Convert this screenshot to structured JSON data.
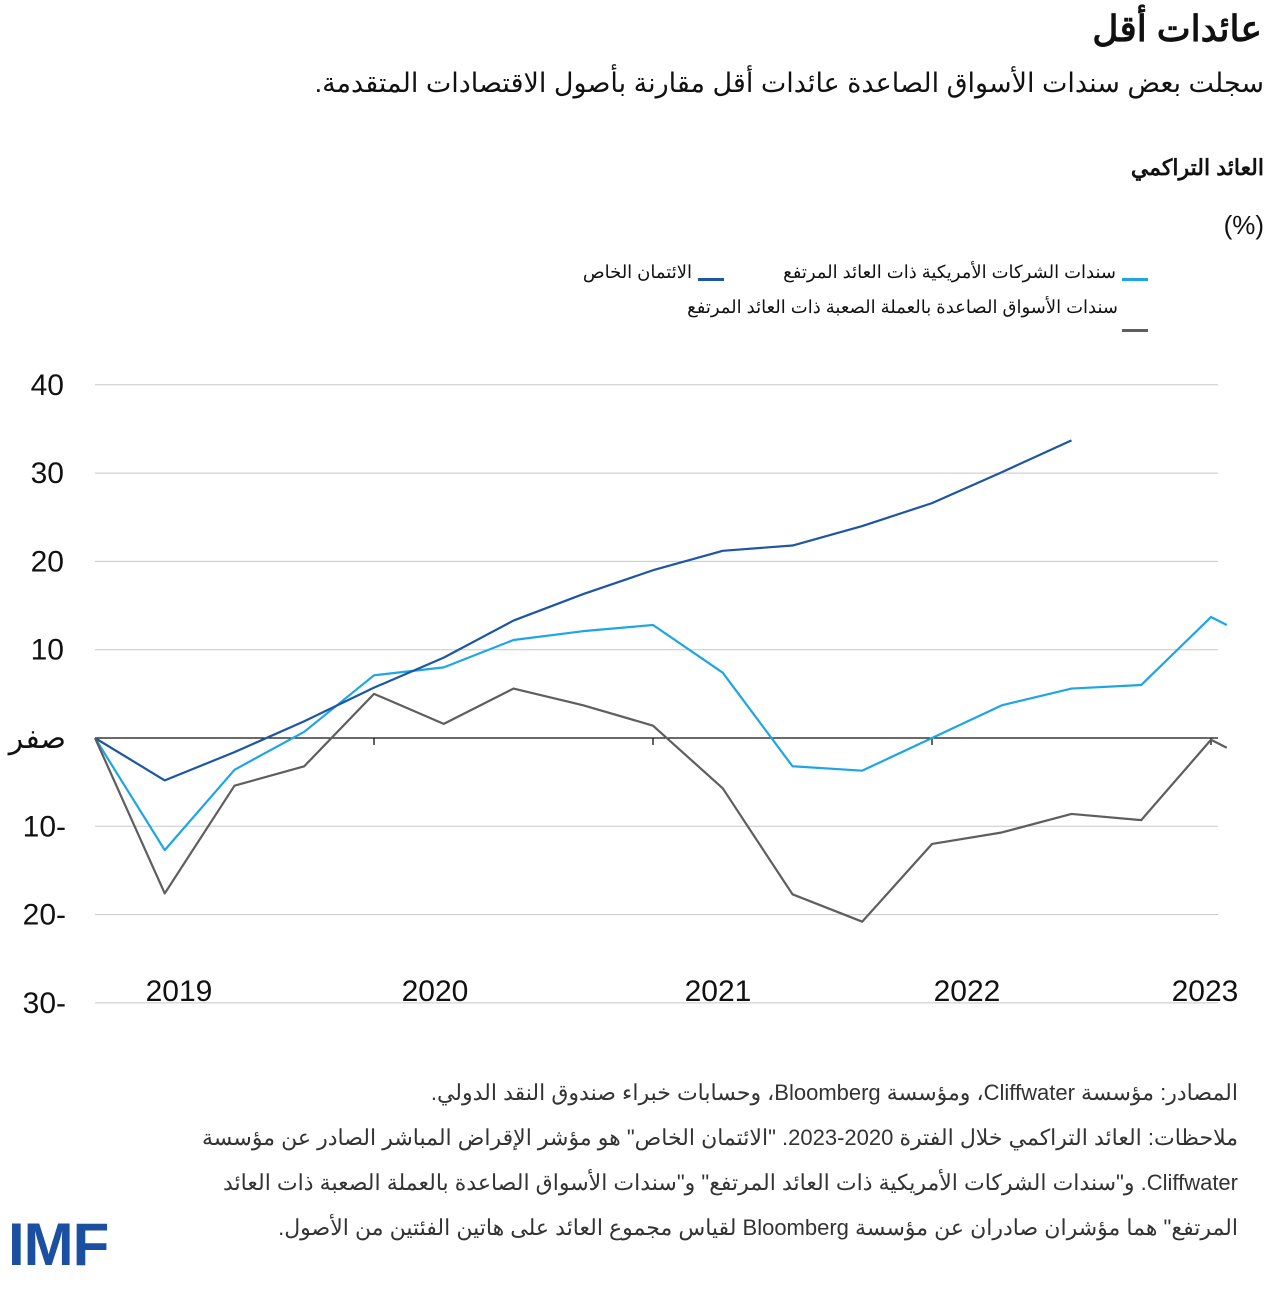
{
  "header": {
    "title": "عائدات أقل",
    "subtitle": "سجلت بعض سندات الأسواق الصاعدة عائدات أقل مقارنة بأصول الاقتصادات المتقدمة."
  },
  "chart_data": {
    "type": "line",
    "ylabel": "العائد التراكمي",
    "yunit": "(%)",
    "ylim": [
      -30,
      40
    ],
    "yticks": [
      40,
      30,
      20,
      10,
      0,
      -10,
      -20,
      -30
    ],
    "ytick_labels": [
      "40",
      "30",
      "20",
      "10",
      "صفر",
      "10-",
      "20-",
      "30-"
    ],
    "xtick_labels": [
      "2019",
      "2020",
      "2021",
      "2022",
      "2023"
    ],
    "x": [
      "2018Q4",
      "2019Q1",
      "2019Q2",
      "2019Q3",
      "2019Q4",
      "2020Q1",
      "2020Q2",
      "2020Q3",
      "2020Q4",
      "2021Q1",
      "2021Q2",
      "2021Q3",
      "2021Q4",
      "2022Q1",
      "2022Q2",
      "2022Q3",
      "2022Q4",
      "2023Q1"
    ],
    "grid": true,
    "legend_position": "top",
    "series": [
      {
        "name": "سندات الشركات الأمريكية ذات العائد المرتفع",
        "color": "#1ea5e6",
        "values": [
          0,
          -12.7,
          -3.6,
          0.7,
          7.1,
          8.0,
          11.1,
          12.1,
          12.8,
          7.4,
          -3.2,
          -3.7,
          0,
          3.7,
          5.6,
          6.0,
          13.7,
          12.8
        ]
      },
      {
        "name": "الائتمان الخاص",
        "color": "#1d56a3",
        "values": [
          0,
          -4.8,
          -1.6,
          1.9,
          5.7,
          9.1,
          13.3,
          16.3,
          19.0,
          21.2,
          21.8,
          24.0,
          26.6,
          30.1,
          33.7,
          null,
          null,
          null
        ]
      },
      {
        "name": "سندات الأسواق الصاعدة بالعملة الصعبة ذات العائد المرتفع",
        "color": "#5e5e5e",
        "values": [
          0,
          -17.6,
          -5.4,
          -3.2,
          5.0,
          1.6,
          5.6,
          3.7,
          1.4,
          -5.7,
          -17.7,
          -20.8,
          -12.0,
          -10.7,
          -8.6,
          -9.3,
          -0.2,
          -1.1
        ]
      }
    ]
  },
  "notes": {
    "sources": "المصادر: مؤسسة Cliffwater، ومؤسسة Bloomberg، وحسابات خبراء صندوق النقد الدولي.",
    "remarks": "ملاحظات: العائد التراكمي خلال الفترة 2020-2023. \"الائتمان الخاص\" هو مؤشر الإقراض المباشر الصادر عن مؤسسة Cliffwater. و\"سندات الشركات الأمريكية ذات العائد المرتفع\" و\"سندات الأسواق الصاعدة بالعملة الصعبة ذات العائد المرتفع\" هما مؤشران صادران عن مؤسسة Bloomberg لقياس مجموع العائد على هاتين الفئتين من الأصول."
  },
  "logo": "IMF"
}
